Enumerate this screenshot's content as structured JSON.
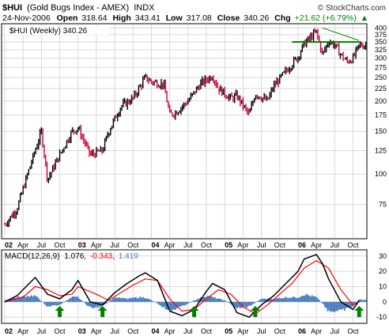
{
  "header": {
    "symbol": "$HUI",
    "name": "(Gold Bugs Index - AMEX)",
    "exchange": "INDX",
    "watermark": "© StockCharts.com",
    "date": "24-Nov-2006",
    "open_label": "Open",
    "open": "318.64",
    "high_label": "High",
    "high": "343.41",
    "low_label": "Low",
    "low": "317.08",
    "close_label": "Close",
    "close": "340.26",
    "chg_label": "Chg",
    "chg": "+21.62 (+6.79%)",
    "chg_arrow": "▲"
  },
  "main_legend": "$HUI (Weekly) 340.26",
  "macd_legend": {
    "prefix": "MACD(12,26,9)",
    "macd": "1.076",
    "signal": "-0.343",
    "hist": "1.419"
  },
  "colors": {
    "up_bar": "#000000",
    "down_bar": "#cc0033",
    "hline": "#008000",
    "trendline": "#008000",
    "macd_line": "#000000",
    "signal_line": "#ff0000",
    "histogram": "#4a7fbf",
    "arrow": "#008000",
    "chg": "#008000",
    "grid": "#d8d8d8"
  },
  "chart_data": [
    {
      "type": "line",
      "scale": "log",
      "ylim": [
        55,
        410
      ],
      "y_ticks": [
        75,
        100,
        125,
        150,
        175,
        200,
        225,
        250,
        275,
        300,
        325,
        350,
        375,
        400
      ],
      "x_labels": [
        "02",
        "Apr",
        "Jul",
        "Oct",
        "03",
        "Apr",
        "Jul",
        "Oct",
        "04",
        "Apr",
        "Jul",
        "Oct",
        "05",
        "Apr",
        "Jul",
        "Oct",
        "06",
        "Apr",
        "Jul",
        "Oct"
      ],
      "x_is_year": [
        true,
        false,
        false,
        false,
        true,
        false,
        false,
        false,
        true,
        false,
        false,
        false,
        true,
        false,
        false,
        false,
        true,
        false,
        false,
        false
      ],
      "series": [
        {
          "name": "$HUI (Weekly)",
          "x": [
            "2002-01",
            "2002-03",
            "2002-05",
            "2002-07",
            "2002-08",
            "2002-10",
            "2002-12",
            "2003-01",
            "2003-03",
            "2003-05",
            "2003-06",
            "2003-08",
            "2003-10",
            "2003-12",
            "2004-01",
            "2004-03",
            "2004-04",
            "2004-05",
            "2004-07",
            "2004-09",
            "2004-11",
            "2004-12",
            "2005-02",
            "2005-03",
            "2005-05",
            "2005-06",
            "2005-08",
            "2005-09",
            "2005-11",
            "2006-01",
            "2006-02",
            "2006-04",
            "2006-05",
            "2006-06",
            "2006-07",
            "2006-08",
            "2006-09",
            "2006-10",
            "2006-11"
          ],
          "values": [
            62,
            72,
            105,
            150,
            95,
            120,
            150,
            155,
            120,
            125,
            150,
            190,
            205,
            250,
            240,
            235,
            175,
            180,
            200,
            235,
            255,
            225,
            205,
            210,
            175,
            215,
            200,
            230,
            265,
            305,
            345,
            385,
            310,
            355,
            340,
            310,
            290,
            300,
            340
          ]
        }
      ],
      "annotations": [
        {
          "type": "horizontal_line",
          "value": 350,
          "from": "2005-12",
          "to": "2006-11"
        },
        {
          "type": "trendline",
          "from": [
            "2006-05",
            400
          ],
          "to": [
            "2006-11",
            355
          ]
        }
      ]
    },
    {
      "type": "line",
      "ylim": [
        -13,
        33
      ],
      "y_ticks": [
        -10,
        0,
        10,
        20,
        30
      ],
      "series": [
        {
          "name": "MACD",
          "x": [
            "2002-01",
            "2002-03",
            "2002-05",
            "2002-06",
            "2002-08",
            "2002-10",
            "2002-12",
            "2003-01",
            "2003-03",
            "2003-05",
            "2003-07",
            "2003-09",
            "2003-11",
            "2003-12",
            "2004-02",
            "2004-04",
            "2004-06",
            "2004-08",
            "2004-10",
            "2004-11",
            "2005-01",
            "2005-03",
            "2005-05",
            "2005-07",
            "2005-09",
            "2005-11",
            "2006-01",
            "2006-02",
            "2006-04",
            "2006-05",
            "2006-06",
            "2006-08",
            "2006-10",
            "2006-11"
          ],
          "values": [
            0,
            4,
            12,
            16,
            5,
            2,
            8,
            14,
            0,
            -2,
            6,
            12,
            17,
            19,
            14,
            -6,
            -9,
            -5,
            7,
            12,
            8,
            -7,
            -10,
            -2,
            4,
            12,
            20,
            28,
            31,
            25,
            15,
            0,
            -5,
            1
          ]
        },
        {
          "name": "Signal",
          "x": [
            "2002-01",
            "2002-04",
            "2002-06",
            "2002-08",
            "2002-10",
            "2002-12",
            "2003-01",
            "2003-04",
            "2003-06",
            "2003-08",
            "2003-10",
            "2003-12",
            "2004-02",
            "2004-04",
            "2004-06",
            "2004-08",
            "2004-10",
            "2004-12",
            "2005-02",
            "2005-04",
            "2005-06",
            "2005-08",
            "2005-10",
            "2005-12",
            "2006-02",
            "2006-04",
            "2006-06",
            "2006-08",
            "2006-10",
            "2006-11"
          ],
          "values": [
            0,
            3,
            10,
            8,
            4,
            5,
            10,
            5,
            1,
            6,
            11,
            15,
            14,
            2,
            -6,
            -5,
            2,
            8,
            5,
            -3,
            -8,
            -2,
            5,
            12,
            22,
            27,
            22,
            8,
            -2,
            0
          ]
        },
        {
          "name": "Histogram",
          "x": [
            "2002-01",
            "2002-03",
            "2002-05",
            "2002-06",
            "2002-08",
            "2002-10",
            "2002-12",
            "2003-01",
            "2003-03",
            "2003-05",
            "2003-07",
            "2003-09",
            "2003-11",
            "2003-12",
            "2004-02",
            "2004-04",
            "2004-06",
            "2004-08",
            "2004-10",
            "2004-11",
            "2005-01",
            "2005-03",
            "2005-05",
            "2005-07",
            "2005-09",
            "2005-11",
            "2006-01",
            "2006-02",
            "2006-04",
            "2006-05",
            "2006-06",
            "2006-08",
            "2006-10",
            "2006-11"
          ],
          "values": [
            1,
            3,
            4,
            4,
            -3,
            -2,
            3,
            3,
            -4,
            -3,
            3,
            2,
            3,
            3,
            -1,
            -6,
            -3,
            1,
            4,
            3,
            1,
            -4,
            -3,
            2,
            2,
            3,
            3,
            5,
            3,
            -1,
            -6,
            -6,
            -3,
            1.4
          ]
        }
      ],
      "annotations": [
        {
          "type": "buy_arrow",
          "x": "2002-10"
        },
        {
          "type": "buy_arrow",
          "x": "2003-05"
        },
        {
          "type": "buy_arrow",
          "x": "2004-08"
        },
        {
          "type": "buy_arrow",
          "x": "2005-06"
        },
        {
          "type": "buy_arrow",
          "x": "2006-11"
        }
      ]
    }
  ]
}
